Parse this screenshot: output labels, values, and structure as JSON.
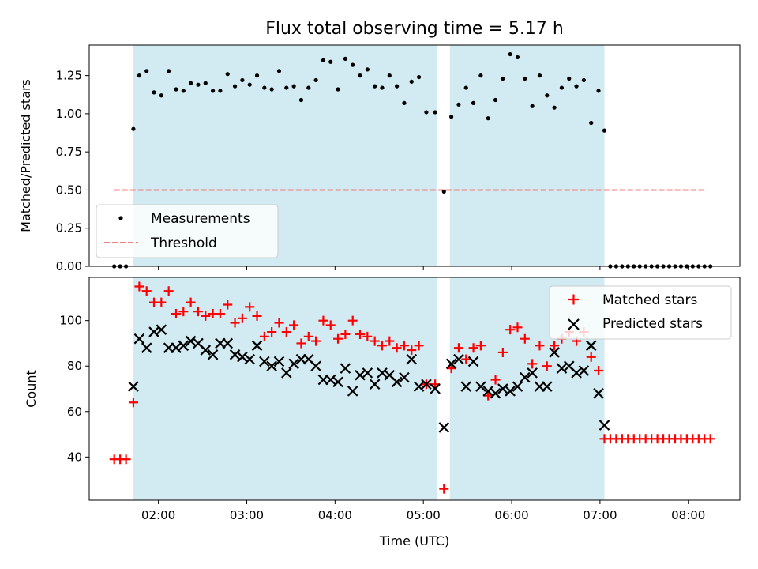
{
  "title": "Flux total observing time = 5.17 h",
  "colors": {
    "span": "#add8e6",
    "measurement": "#000000",
    "threshold": "#f08080",
    "matched": "#ff0000",
    "predicted": "#000000"
  },
  "x_ticks": [
    "02:00",
    "03:00",
    "04:00",
    "05:00",
    "06:00",
    "07:00",
    "08:00"
  ],
  "x_label": "Time (UTC)",
  "chart_data": [
    {
      "type": "scatter",
      "panel": "top",
      "ylabel": "Matched/Predicted stars",
      "xlim": [
        "01:13",
        "08:35"
      ],
      "ylim": [
        0,
        1.45
      ],
      "y_ticks": [
        "0.00",
        "0.25",
        "0.50",
        "0.75",
        "1.00",
        "1.25"
      ],
      "shaded_spans": [
        [
          "01:43",
          "05:09"
        ],
        [
          "05:18",
          "07:03"
        ]
      ],
      "threshold": {
        "name": "Threshold",
        "value": 0.5,
        "x_range": [
          "01:30",
          "08:13"
        ]
      },
      "legend_position": "lower-left",
      "series": [
        {
          "name": "Measurements",
          "marker": "dot",
          "points": [
            [
              "01:30",
              0
            ],
            [
              "01:34",
              0
            ],
            [
              "01:38",
              0
            ],
            [
              "01:43",
              0.9
            ],
            [
              "01:47",
              1.25
            ],
            [
              "01:52",
              1.28
            ],
            [
              "01:57",
              1.14
            ],
            [
              "02:02",
              1.12
            ],
            [
              "02:07",
              1.28
            ],
            [
              "02:12",
              1.16
            ],
            [
              "02:17",
              1.15
            ],
            [
              "02:22",
              1.2
            ],
            [
              "02:27",
              1.19
            ],
            [
              "02:32",
              1.2
            ],
            [
              "02:37",
              1.15
            ],
            [
              "02:42",
              1.15
            ],
            [
              "02:47",
              1.26
            ],
            [
              "02:52",
              1.18
            ],
            [
              "02:57",
              1.22
            ],
            [
              "03:02",
              1.19
            ],
            [
              "03:07",
              1.25
            ],
            [
              "03:12",
              1.17
            ],
            [
              "03:17",
              1.16
            ],
            [
              "03:22",
              1.28
            ],
            [
              "03:27",
              1.17
            ],
            [
              "03:32",
              1.18
            ],
            [
              "03:37",
              1.09
            ],
            [
              "03:42",
              1.17
            ],
            [
              "03:47",
              1.22
            ],
            [
              "03:52",
              1.35
            ],
            [
              "03:57",
              1.34
            ],
            [
              "04:02",
              1.16
            ],
            [
              "04:07",
              1.36
            ],
            [
              "04:12",
              1.32
            ],
            [
              "04:17",
              1.25
            ],
            [
              "04:22",
              1.29
            ],
            [
              "04:27",
              1.18
            ],
            [
              "04:32",
              1.17
            ],
            [
              "04:37",
              1.25
            ],
            [
              "04:42",
              1.18
            ],
            [
              "04:47",
              1.07
            ],
            [
              "04:52",
              1.21
            ],
            [
              "04:57",
              1.24
            ],
            [
              "05:02",
              1.01
            ],
            [
              "05:08",
              1.01
            ],
            [
              "05:14",
              0.49
            ],
            [
              "05:19",
              0.98
            ],
            [
              "05:24",
              1.06
            ],
            [
              "05:29",
              1.17
            ],
            [
              "05:34",
              1.07
            ],
            [
              "05:39",
              1.25
            ],
            [
              "05:44",
              0.97
            ],
            [
              "05:49",
              1.09
            ],
            [
              "05:54",
              1.23
            ],
            [
              "05:59",
              1.39
            ],
            [
              "06:04",
              1.37
            ],
            [
              "06:09",
              1.23
            ],
            [
              "06:14",
              1.05
            ],
            [
              "06:19",
              1.25
            ],
            [
              "06:24",
              1.12
            ],
            [
              "06:29",
              1.04
            ],
            [
              "06:34",
              1.17
            ],
            [
              "06:39",
              1.23
            ],
            [
              "06:44",
              1.18
            ],
            [
              "06:49",
              1.22
            ],
            [
              "06:54",
              0.94
            ],
            [
              "06:59",
              1.15
            ],
            [
              "07:03",
              0.89
            ],
            [
              "07:07",
              0
            ],
            [
              "07:11",
              0
            ],
            [
              "07:15",
              0
            ],
            [
              "07:19",
              0
            ],
            [
              "07:23",
              0
            ],
            [
              "07:27",
              0
            ],
            [
              "07:31",
              0
            ],
            [
              "07:35",
              0
            ],
            [
              "07:39",
              0
            ],
            [
              "07:43",
              0
            ],
            [
              "07:47",
              0
            ],
            [
              "07:51",
              0
            ],
            [
              "07:55",
              0
            ],
            [
              "07:59",
              0
            ],
            [
              "08:03",
              0
            ],
            [
              "08:07",
              0
            ],
            [
              "08:11",
              0
            ],
            [
              "08:15",
              0
            ]
          ]
        }
      ]
    },
    {
      "type": "scatter",
      "panel": "bottom",
      "ylabel": "Count",
      "xlabel": "Time (UTC)",
      "xlim": [
        "01:13",
        "08:35"
      ],
      "ylim": [
        21,
        119
      ],
      "y_ticks": [
        "40",
        "60",
        "80",
        "100"
      ],
      "shaded_spans": [
        [
          "01:43",
          "05:09"
        ],
        [
          "05:18",
          "07:03"
        ]
      ],
      "legend_position": "upper-right",
      "series": [
        {
          "name": "Matched stars",
          "marker": "plus",
          "points": [
            [
              "01:30",
              39
            ],
            [
              "01:34",
              39
            ],
            [
              "01:38",
              39
            ],
            [
              "01:43",
              64
            ],
            [
              "01:47",
              115
            ],
            [
              "01:52",
              113
            ],
            [
              "01:57",
              108
            ],
            [
              "02:02",
              108
            ],
            [
              "02:07",
              113
            ],
            [
              "02:12",
              103
            ],
            [
              "02:17",
              104
            ],
            [
              "02:22",
              108
            ],
            [
              "02:27",
              104
            ],
            [
              "02:32",
              102
            ],
            [
              "02:37",
              103
            ],
            [
              "02:42",
              103
            ],
            [
              "02:47",
              107
            ],
            [
              "02:52",
              99
            ],
            [
              "02:57",
              101
            ],
            [
              "03:02",
              106
            ],
            [
              "03:07",
              102
            ],
            [
              "03:12",
              93
            ],
            [
              "03:17",
              95
            ],
            [
              "03:22",
              99
            ],
            [
              "03:27",
              95
            ],
            [
              "03:32",
              98
            ],
            [
              "03:37",
              90
            ],
            [
              "03:42",
              93
            ],
            [
              "03:47",
              91
            ],
            [
              "03:52",
              100
            ],
            [
              "03:57",
              98
            ],
            [
              "04:02",
              92
            ],
            [
              "04:07",
              94
            ],
            [
              "04:12",
              100
            ],
            [
              "04:17",
              94
            ],
            [
              "04:22",
              93
            ],
            [
              "04:27",
              91
            ],
            [
              "04:32",
              89
            ],
            [
              "04:37",
              91
            ],
            [
              "04:42",
              88
            ],
            [
              "04:47",
              89
            ],
            [
              "04:52",
              87
            ],
            [
              "04:57",
              89
            ],
            [
              "05:02",
              72
            ],
            [
              "05:08",
              72
            ],
            [
              "05:14",
              26
            ],
            [
              "05:19",
              79
            ],
            [
              "05:24",
              88
            ],
            [
              "05:29",
              83
            ],
            [
              "05:34",
              88
            ],
            [
              "05:39",
              89
            ],
            [
              "05:44",
              67
            ],
            [
              "05:49",
              74
            ],
            [
              "05:54",
              86
            ],
            [
              "05:59",
              96
            ],
            [
              "06:04",
              97
            ],
            [
              "06:09",
              92
            ],
            [
              "06:14",
              81
            ],
            [
              "06:19",
              89
            ],
            [
              "06:24",
              80
            ],
            [
              "06:29",
              89
            ],
            [
              "06:34",
              92
            ],
            [
              "06:39",
              95
            ],
            [
              "06:44",
              91
            ],
            [
              "06:49",
              95
            ],
            [
              "06:54",
              84
            ],
            [
              "06:59",
              78
            ],
            [
              "07:03",
              48
            ],
            [
              "07:07",
              48
            ],
            [
              "07:11",
              48
            ],
            [
              "07:15",
              48
            ],
            [
              "07:19",
              48
            ],
            [
              "07:23",
              48
            ],
            [
              "07:27",
              48
            ],
            [
              "07:31",
              48
            ],
            [
              "07:35",
              48
            ],
            [
              "07:39",
              48
            ],
            [
              "07:43",
              48
            ],
            [
              "07:47",
              48
            ],
            [
              "07:51",
              48
            ],
            [
              "07:55",
              48
            ],
            [
              "07:59",
              48
            ],
            [
              "08:03",
              48
            ],
            [
              "08:07",
              48
            ],
            [
              "08:11",
              48
            ],
            [
              "08:15",
              48
            ]
          ]
        },
        {
          "name": "Predicted stars",
          "marker": "x",
          "points": [
            [
              "01:43",
              71
            ],
            [
              "01:47",
              92
            ],
            [
              "01:52",
              88
            ],
            [
              "01:57",
              95
            ],
            [
              "02:02",
              96
            ],
            [
              "02:07",
              88
            ],
            [
              "02:12",
              88
            ],
            [
              "02:17",
              89
            ],
            [
              "02:22",
              91
            ],
            [
              "02:27",
              90
            ],
            [
              "02:32",
              87
            ],
            [
              "02:37",
              85
            ],
            [
              "02:42",
              90
            ],
            [
              "02:47",
              90
            ],
            [
              "02:52",
              85
            ],
            [
              "02:57",
              84
            ],
            [
              "03:02",
              83
            ],
            [
              "03:07",
              89
            ],
            [
              "03:12",
              82
            ],
            [
              "03:17",
              80
            ],
            [
              "03:22",
              82
            ],
            [
              "03:27",
              77
            ],
            [
              "03:32",
              81
            ],
            [
              "03:37",
              83
            ],
            [
              "03:42",
              83
            ],
            [
              "03:47",
              80
            ],
            [
              "03:52",
              74
            ],
            [
              "03:57",
              74
            ],
            [
              "04:02",
              73
            ],
            [
              "04:07",
              79
            ],
            [
              "04:12",
              69
            ],
            [
              "04:17",
              76
            ],
            [
              "04:22",
              77
            ],
            [
              "04:27",
              72
            ],
            [
              "04:32",
              77
            ],
            [
              "04:37",
              76
            ],
            [
              "04:42",
              73
            ],
            [
              "04:47",
              75
            ],
            [
              "04:52",
              83
            ],
            [
              "04:57",
              71
            ],
            [
              "05:02",
              72
            ],
            [
              "05:08",
              70
            ],
            [
              "05:14",
              53
            ],
            [
              "05:19",
              81
            ],
            [
              "05:24",
              83
            ],
            [
              "05:29",
              71
            ],
            [
              "05:34",
              82
            ],
            [
              "05:39",
              71
            ],
            [
              "05:44",
              69
            ],
            [
              "05:49",
              68
            ],
            [
              "05:54",
              70
            ],
            [
              "05:59",
              69
            ],
            [
              "06:04",
              71
            ],
            [
              "06:09",
              75
            ],
            [
              "06:14",
              77
            ],
            [
              "06:19",
              71
            ],
            [
              "06:24",
              71
            ],
            [
              "06:29",
              86
            ],
            [
              "06:34",
              79
            ],
            [
              "06:39",
              80
            ],
            [
              "06:44",
              77
            ],
            [
              "06:49",
              78
            ],
            [
              "06:54",
              89
            ],
            [
              "06:59",
              68
            ],
            [
              "07:03",
              54
            ]
          ]
        }
      ]
    }
  ]
}
